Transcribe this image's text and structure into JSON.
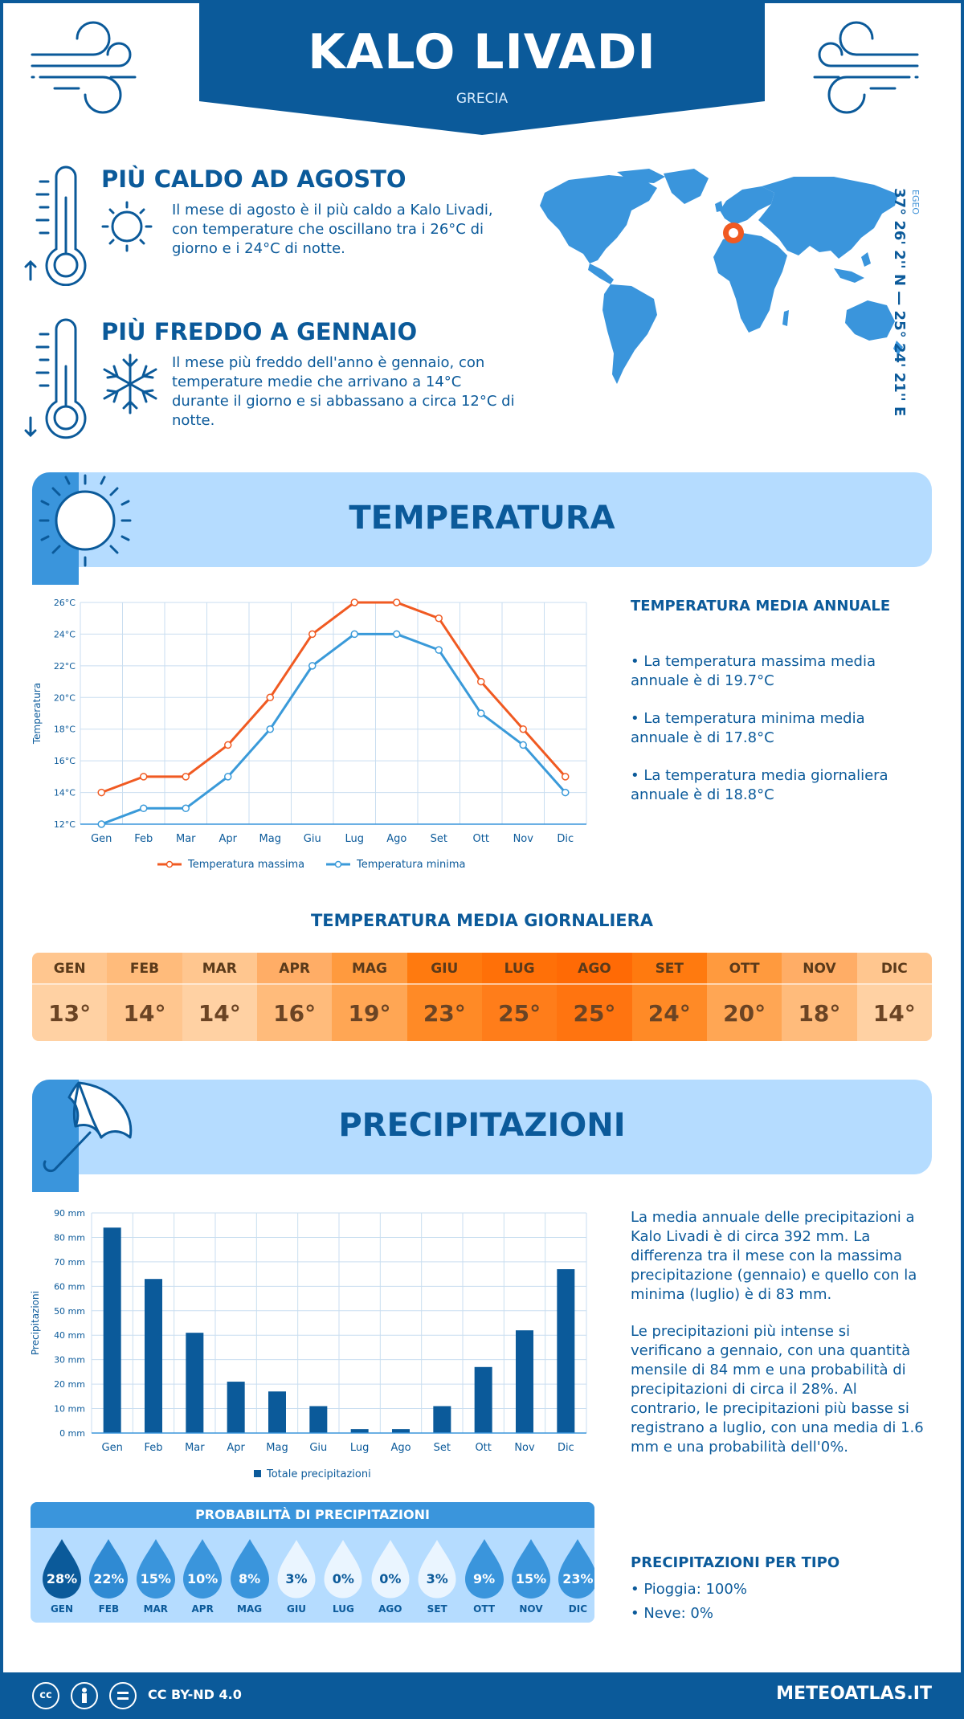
{
  "header": {
    "title": "KALO LIVADI",
    "subtitle": "GRECIA"
  },
  "facts": [
    {
      "title": "PIÙ CALDO AD AGOSTO",
      "text": "Il mese di agosto è il più caldo a Kalo Livadi, con temperature che oscillano tra i 26°C di giorno e i 24°C di notte.",
      "icon": "thermometer-sun-icon"
    },
    {
      "title": "PIÙ FREDDO A GENNAIO",
      "text": "Il mese più freddo dell'anno è gennaio, con temperature medie che arrivano a 14°C durante il giorno e si abbassano a circa 12°C di notte.",
      "icon": "thermometer-snowflake-icon"
    }
  ],
  "map": {
    "coordinates": "37° 26' 2'' N — 25° 24' 21'' E",
    "sea": "EGEO"
  },
  "temperature_section": {
    "title": "TEMPERATURA",
    "side_title": "TEMPERATURA MEDIA ANNUALE",
    "bullets": [
      "• La temperatura massima media annuale è di 19.7°C",
      "• La temperatura minima media annuale è di 17.8°C",
      "• La temperatura media giornaliera annuale è di 18.8°C"
    ]
  },
  "chart_data": [
    {
      "type": "line",
      "ylabel": "Temperatura",
      "categories": [
        "Gen",
        "Feb",
        "Mar",
        "Apr",
        "Mag",
        "Giu",
        "Lug",
        "Ago",
        "Set",
        "Ott",
        "Nov",
        "Dic"
      ],
      "yticks": [
        "12°C",
        "14°C",
        "16°C",
        "18°C",
        "20°C",
        "22°C",
        "24°C",
        "26°C"
      ],
      "ylim": [
        12,
        26
      ],
      "grid": true,
      "legend_position": "bottom",
      "series": [
        {
          "name": "Temperatura massima",
          "color": "#f05a22",
          "values": [
            14,
            15,
            15,
            17,
            20,
            24,
            26,
            26,
            25,
            21,
            18,
            15
          ]
        },
        {
          "name": "Temperatura minima",
          "color": "#3a9ad9",
          "values": [
            12,
            13,
            13,
            15,
            18,
            22,
            24,
            24,
            23,
            19,
            17,
            14
          ]
        }
      ]
    },
    {
      "type": "bar",
      "ylabel": "Precipitazioni",
      "categories": [
        "Gen",
        "Feb",
        "Mar",
        "Apr",
        "Mag",
        "Giu",
        "Lug",
        "Ago",
        "Set",
        "Ott",
        "Nov",
        "Dic"
      ],
      "yticks": [
        "0 mm",
        "10 mm",
        "20 mm",
        "30 mm",
        "40 mm",
        "50 mm",
        "60 mm",
        "70 mm",
        "80 mm",
        "90 mm"
      ],
      "ylim": [
        0,
        90
      ],
      "grid": true,
      "legend_position": "bottom",
      "series": [
        {
          "name": "Totale precipitazioni",
          "color": "#0b5a9a",
          "values": [
            84,
            63,
            41,
            21,
            17,
            11,
            1.6,
            1.6,
            11,
            27,
            42,
            67
          ]
        }
      ]
    }
  ],
  "daily": {
    "title": "TEMPERATURA MEDIA GIORNALIERA",
    "months": [
      "GEN",
      "FEB",
      "MAR",
      "APR",
      "MAG",
      "GIU",
      "LUG",
      "AGO",
      "SET",
      "OTT",
      "NOV",
      "DIC"
    ],
    "values": [
      "13°",
      "14°",
      "14°",
      "16°",
      "19°",
      "23°",
      "25°",
      "25°",
      "24°",
      "20°",
      "18°",
      "14°"
    ],
    "head_colors": [
      "#ffc68f",
      "#ffbb7b",
      "#ffc68f",
      "#ffad66",
      "#ff9a3e",
      "#ff7a0f",
      "#ff7008",
      "#ff6a05",
      "#ff7a0f",
      "#ff9a3e",
      "#ffad66",
      "#ffc68f"
    ],
    "cell_colors": [
      "#ffd1a3",
      "#ffc68f",
      "#ffd1a3",
      "#ffbb7b",
      "#ffa654",
      "#ff8a26",
      "#ff7d1a",
      "#ff7410",
      "#ff8a26",
      "#ffa654",
      "#ffbb7b",
      "#ffd1a3"
    ]
  },
  "precip_section": {
    "title": "PRECIPITAZIONI",
    "paragraphs": [
      "La media annuale delle precipitazioni a Kalo Livadi è di circa 392 mm. La differenza tra il mese con la massima precipitazione (gennaio) e quello con la minima (luglio) è di 83 mm.",
      "Le precipitazioni più intense si verificano a gennaio, con una quantità mensile di 84 mm e una probabilità di precipitazioni di circa il 28%. Al contrario, le precipitazioni più basse si registrano a luglio, con una media di 1.6 mm e una probabilità dell'0%."
    ]
  },
  "probability": {
    "title": "PROBABILITÀ DI PRECIPITAZIONI",
    "months": [
      "GEN",
      "FEB",
      "MAR",
      "APR",
      "MAG",
      "GIU",
      "LUG",
      "AGO",
      "SET",
      "OTT",
      "NOV",
      "DIC"
    ],
    "values": [
      "28%",
      "22%",
      "15%",
      "10%",
      "8%",
      "3%",
      "0%",
      "0%",
      "3%",
      "9%",
      "15%",
      "23%"
    ],
    "colors": [
      "#0b5a9a",
      "#2f8ad3",
      "#3a95dc",
      "#3a95dc",
      "#3a95dc",
      "#eaf5ff",
      "#eaf5ff",
      "#eaf5ff",
      "#eaf5ff",
      "#3a95dc",
      "#3a95dc",
      "#3a95dc"
    ]
  },
  "precip_type": {
    "title": "PRECIPITAZIONI PER TIPO",
    "items": [
      "• Pioggia: 100%",
      "• Neve: 0%"
    ]
  },
  "footer": {
    "license": "CC BY-ND 4.0",
    "brand": "METEOATLAS.IT"
  },
  "colors": {
    "primary": "#0b5a9a",
    "light": "#b5dcff",
    "accent": "#3a95dc",
    "max": "#f05a22"
  }
}
